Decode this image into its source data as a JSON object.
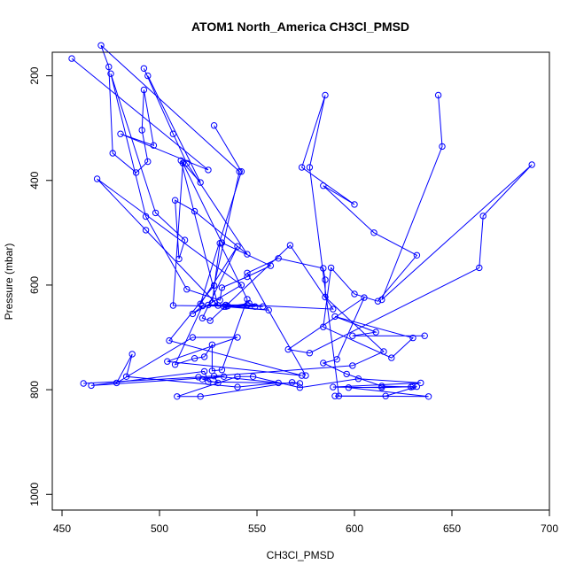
{
  "chart_data": {
    "type": "line",
    "title": "ATOM1 North_America CH3Cl_PMSD",
    "xlabel": "CH3Cl_PMSD",
    "ylabel": "Pressure (mbar)",
    "xlim": [
      445,
      700
    ],
    "ylim": [
      1030,
      155
    ],
    "y_reversed": true,
    "x_ticks": [
      450,
      500,
      550,
      600,
      650,
      700
    ],
    "y_ticks": [
      200,
      400,
      600,
      800,
      1000
    ],
    "series": [
      {
        "color": "#0000ff",
        "marker": "open-circle",
        "points": [
          [
            455,
            167
          ],
          [
            525,
            380
          ],
          [
            480,
            311
          ],
          [
            497,
            333
          ],
          [
            492,
            227
          ],
          [
            491,
            304
          ],
          [
            494,
            364
          ],
          [
            488,
            385
          ],
          [
            476,
            348
          ],
          [
            474,
            183
          ],
          [
            470,
            142
          ],
          [
            541,
            383
          ],
          [
            528,
            601
          ],
          [
            505,
            706
          ],
          [
            573,
            773
          ],
          [
            504,
            746
          ],
          [
            540,
            700
          ],
          [
            517,
            700
          ],
          [
            478,
            787
          ],
          [
            486,
            732
          ],
          [
            483,
            775
          ],
          [
            540,
            795
          ],
          [
            561,
            787
          ],
          [
            528,
            774
          ],
          [
            530,
            787
          ],
          [
            522,
            780
          ],
          [
            533,
            775
          ],
          [
            465,
            792
          ],
          [
            523,
            765
          ],
          [
            525,
            785
          ],
          [
            572,
            788
          ],
          [
            568,
            786
          ],
          [
            521,
            813
          ],
          [
            509,
            813
          ],
          [
            540,
            775
          ],
          [
            548,
            775
          ],
          [
            572,
            796
          ],
          [
            602,
            779
          ],
          [
            634,
            787
          ],
          [
            589,
            795
          ],
          [
            614,
            796
          ],
          [
            630,
            794
          ],
          [
            597,
            796
          ],
          [
            638,
            813
          ],
          [
            592,
            812
          ],
          [
            577,
            375
          ],
          [
            585,
            237
          ],
          [
            573,
            375
          ],
          [
            600,
            446
          ],
          [
            584,
            410
          ],
          [
            610,
            500
          ],
          [
            632,
            543
          ],
          [
            612,
            631
          ],
          [
            600,
            617
          ],
          [
            588,
            567
          ],
          [
            584,
            680
          ],
          [
            619,
            739
          ],
          [
            630,
            701
          ],
          [
            590,
            660
          ],
          [
            611,
            690
          ],
          [
            599,
            697
          ],
          [
            636,
            697
          ]
        ]
      },
      {
        "color": "#0000ff",
        "marker": "open-circle",
        "points": [
          [
            643,
            237
          ],
          [
            645,
            335
          ],
          [
            614,
            628
          ],
          [
            691,
            370
          ],
          [
            666,
            468
          ],
          [
            664,
            567
          ],
          [
            577,
            730
          ],
          [
            566,
            723
          ],
          [
            605,
            624
          ],
          [
            591,
            742
          ],
          [
            584,
            749
          ],
          [
            596,
            770
          ],
          [
            614,
            793
          ],
          [
            629,
            795
          ],
          [
            632,
            794
          ],
          [
            616,
            812
          ],
          [
            590,
            812
          ]
        ]
      },
      {
        "color": "#0000ff",
        "marker": "open-circle",
        "points": [
          [
            492,
            186
          ],
          [
            507,
            311
          ],
          [
            514,
            367
          ],
          [
            545,
            541
          ],
          [
            518,
            459
          ],
          [
            508,
            438
          ],
          [
            510,
            550
          ],
          [
            513,
            514
          ],
          [
            498,
            462
          ],
          [
            475,
            196
          ],
          [
            493,
            469
          ],
          [
            514,
            608
          ],
          [
            531,
            629
          ],
          [
            532,
            605
          ],
          [
            545,
            584
          ],
          [
            557,
            563
          ],
          [
            532,
            519
          ],
          [
            512,
            367
          ],
          [
            507,
            639
          ],
          [
            549,
            641
          ]
        ]
      },
      {
        "color": "#0000ff",
        "marker": "open-circle",
        "points": [
          [
            494,
            200
          ],
          [
            521,
            404
          ],
          [
            511,
            362
          ],
          [
            530,
            639
          ],
          [
            493,
            495
          ],
          [
            468,
            397
          ],
          [
            542,
            600
          ],
          [
            517,
            655
          ],
          [
            522,
            640
          ],
          [
            508,
            752
          ],
          [
            518,
            740
          ],
          [
            523,
            737
          ],
          [
            527,
            714
          ],
          [
            527,
            764
          ],
          [
            532,
            762
          ],
          [
            545,
            627
          ],
          [
            531,
            520
          ],
          [
            527,
            634
          ]
        ]
      },
      {
        "color": "#0000ff",
        "marker": "open-circle",
        "points": [
          [
            528,
            295
          ],
          [
            542,
            383
          ],
          [
            521,
            636
          ],
          [
            540,
            526
          ],
          [
            522,
            663
          ],
          [
            526,
            668
          ],
          [
            567,
            524
          ],
          [
            589,
            646
          ],
          [
            545,
            638
          ],
          [
            525,
            638
          ],
          [
            534,
            641
          ],
          [
            546,
            635
          ],
          [
            553,
            641
          ],
          [
            534,
            638
          ],
          [
            535,
            640
          ],
          [
            556,
            648
          ],
          [
            533,
            641
          ]
        ]
      },
      {
        "color": "#0000ff",
        "marker": "open-circle",
        "points": [
          [
            461,
            788
          ],
          [
            520,
            776
          ],
          [
            599,
            754
          ],
          [
            615,
            727
          ],
          [
            585,
            623
          ],
          [
            585,
            590
          ],
          [
            584,
            568
          ],
          [
            561,
            549
          ],
          [
            545,
            577
          ],
          [
            575,
            773
          ]
        ]
      }
    ]
  }
}
